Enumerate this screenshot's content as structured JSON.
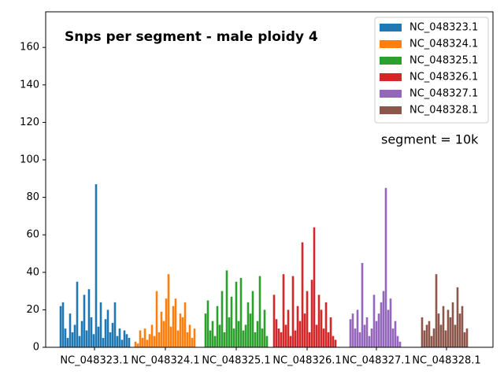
{
  "chart_data": {
    "type": "bar",
    "title": "Snps per segment - male ploidy 4",
    "annotation": "segment = 10k",
    "xlim": [
      0,
      568
    ],
    "xticks": [
      {
        "value": 62,
        "label": "NC_048323.1"
      },
      {
        "value": 152,
        "label": "NC_048324.1"
      },
      {
        "value": 242,
        "label": "NC_048325.1"
      },
      {
        "value": 332,
        "label": "NC_048326.1"
      },
      {
        "value": 420,
        "label": "NC_048327.1"
      },
      {
        "value": 509,
        "label": "NC_048328.1"
      }
    ],
    "ylim": [
      0,
      179
    ],
    "yticks": [
      0,
      20,
      40,
      60,
      80,
      100,
      120,
      140,
      160
    ],
    "legend": "upper right",
    "series": [
      {
        "name": "NC_048323.1",
        "color": "#1f77b4",
        "x": [
          19,
          22,
          25,
          28,
          31,
          34,
          37,
          40,
          43,
          46,
          49,
          52,
          55,
          58,
          61,
          64,
          67,
          70,
          73,
          76,
          79,
          82,
          85,
          88,
          91,
          94,
          97,
          100,
          103,
          106
        ],
        "values": [
          22,
          24,
          10,
          5,
          18,
          8,
          12,
          35,
          6,
          14,
          28,
          9,
          31,
          16,
          7,
          87,
          11,
          24,
          5,
          15,
          20,
          8,
          13,
          24,
          6,
          10,
          4,
          9,
          7,
          5
        ]
      },
      {
        "name": "NC_048324.1",
        "color": "#ff7f0e",
        "x": [
          114,
          117,
          120,
          123,
          126,
          129,
          132,
          135,
          138,
          141,
          144,
          147,
          150,
          153,
          156,
          159,
          162,
          165,
          168,
          171,
          174,
          177,
          180,
          183,
          186,
          189
        ],
        "values": [
          3,
          2,
          9,
          5,
          10,
          4,
          7,
          12,
          6,
          30,
          8,
          19,
          14,
          26,
          39,
          11,
          22,
          26,
          9,
          18,
          16,
          24,
          8,
          12,
          5,
          10
        ]
      },
      {
        "name": "NC_048325.1",
        "color": "#2ca02c",
        "x": [
          203,
          206,
          209,
          212,
          215,
          218,
          221,
          224,
          227,
          230,
          233,
          236,
          239,
          242,
          245,
          248,
          251,
          254,
          257,
          260,
          263,
          266,
          269,
          272,
          275,
          278,
          281
        ],
        "values": [
          18,
          25,
          9,
          14,
          6,
          22,
          12,
          30,
          8,
          41,
          16,
          27,
          10,
          35,
          14,
          37,
          9,
          12,
          24,
          18,
          30,
          8,
          14,
          38,
          10,
          20,
          6
        ]
      },
      {
        "name": "NC_048326.1",
        "color": "#d62728",
        "x": [
          290,
          293,
          296,
          299,
          302,
          305,
          308,
          311,
          314,
          317,
          320,
          323,
          326,
          329,
          332,
          335,
          338,
          341,
          344,
          347,
          350,
          353,
          356,
          359,
          362,
          365,
          368
        ],
        "values": [
          28,
          15,
          10,
          8,
          39,
          12,
          20,
          6,
          38,
          9,
          22,
          14,
          56,
          18,
          30,
          8,
          36,
          64,
          12,
          28,
          20,
          10,
          24,
          8,
          16,
          6,
          4
        ]
      },
      {
        "name": "NC_048327.1",
        "color": "#9467bd",
        "x": [
          387,
          390,
          393,
          396,
          399,
          402,
          405,
          408,
          411,
          414,
          417,
          420,
          423,
          426,
          429,
          432,
          435,
          438,
          441,
          444,
          447,
          450
        ],
        "values": [
          15,
          18,
          10,
          20,
          8,
          45,
          12,
          16,
          6,
          10,
          28,
          14,
          18,
          24,
          30,
          85,
          20,
          26,
          10,
          14,
          6,
          3
        ]
      },
      {
        "name": "NC_048328.1",
        "color": "#8c564b",
        "x": [
          478,
          481,
          484,
          487,
          490,
          493,
          496,
          499,
          502,
          505,
          508,
          511,
          514,
          517,
          520,
          523,
          526,
          529,
          532,
          535
        ],
        "values": [
          16,
          9,
          12,
          14,
          6,
          10,
          39,
          18,
          12,
          22,
          9,
          20,
          16,
          24,
          12,
          32,
          18,
          22,
          8,
          10
        ]
      }
    ]
  }
}
